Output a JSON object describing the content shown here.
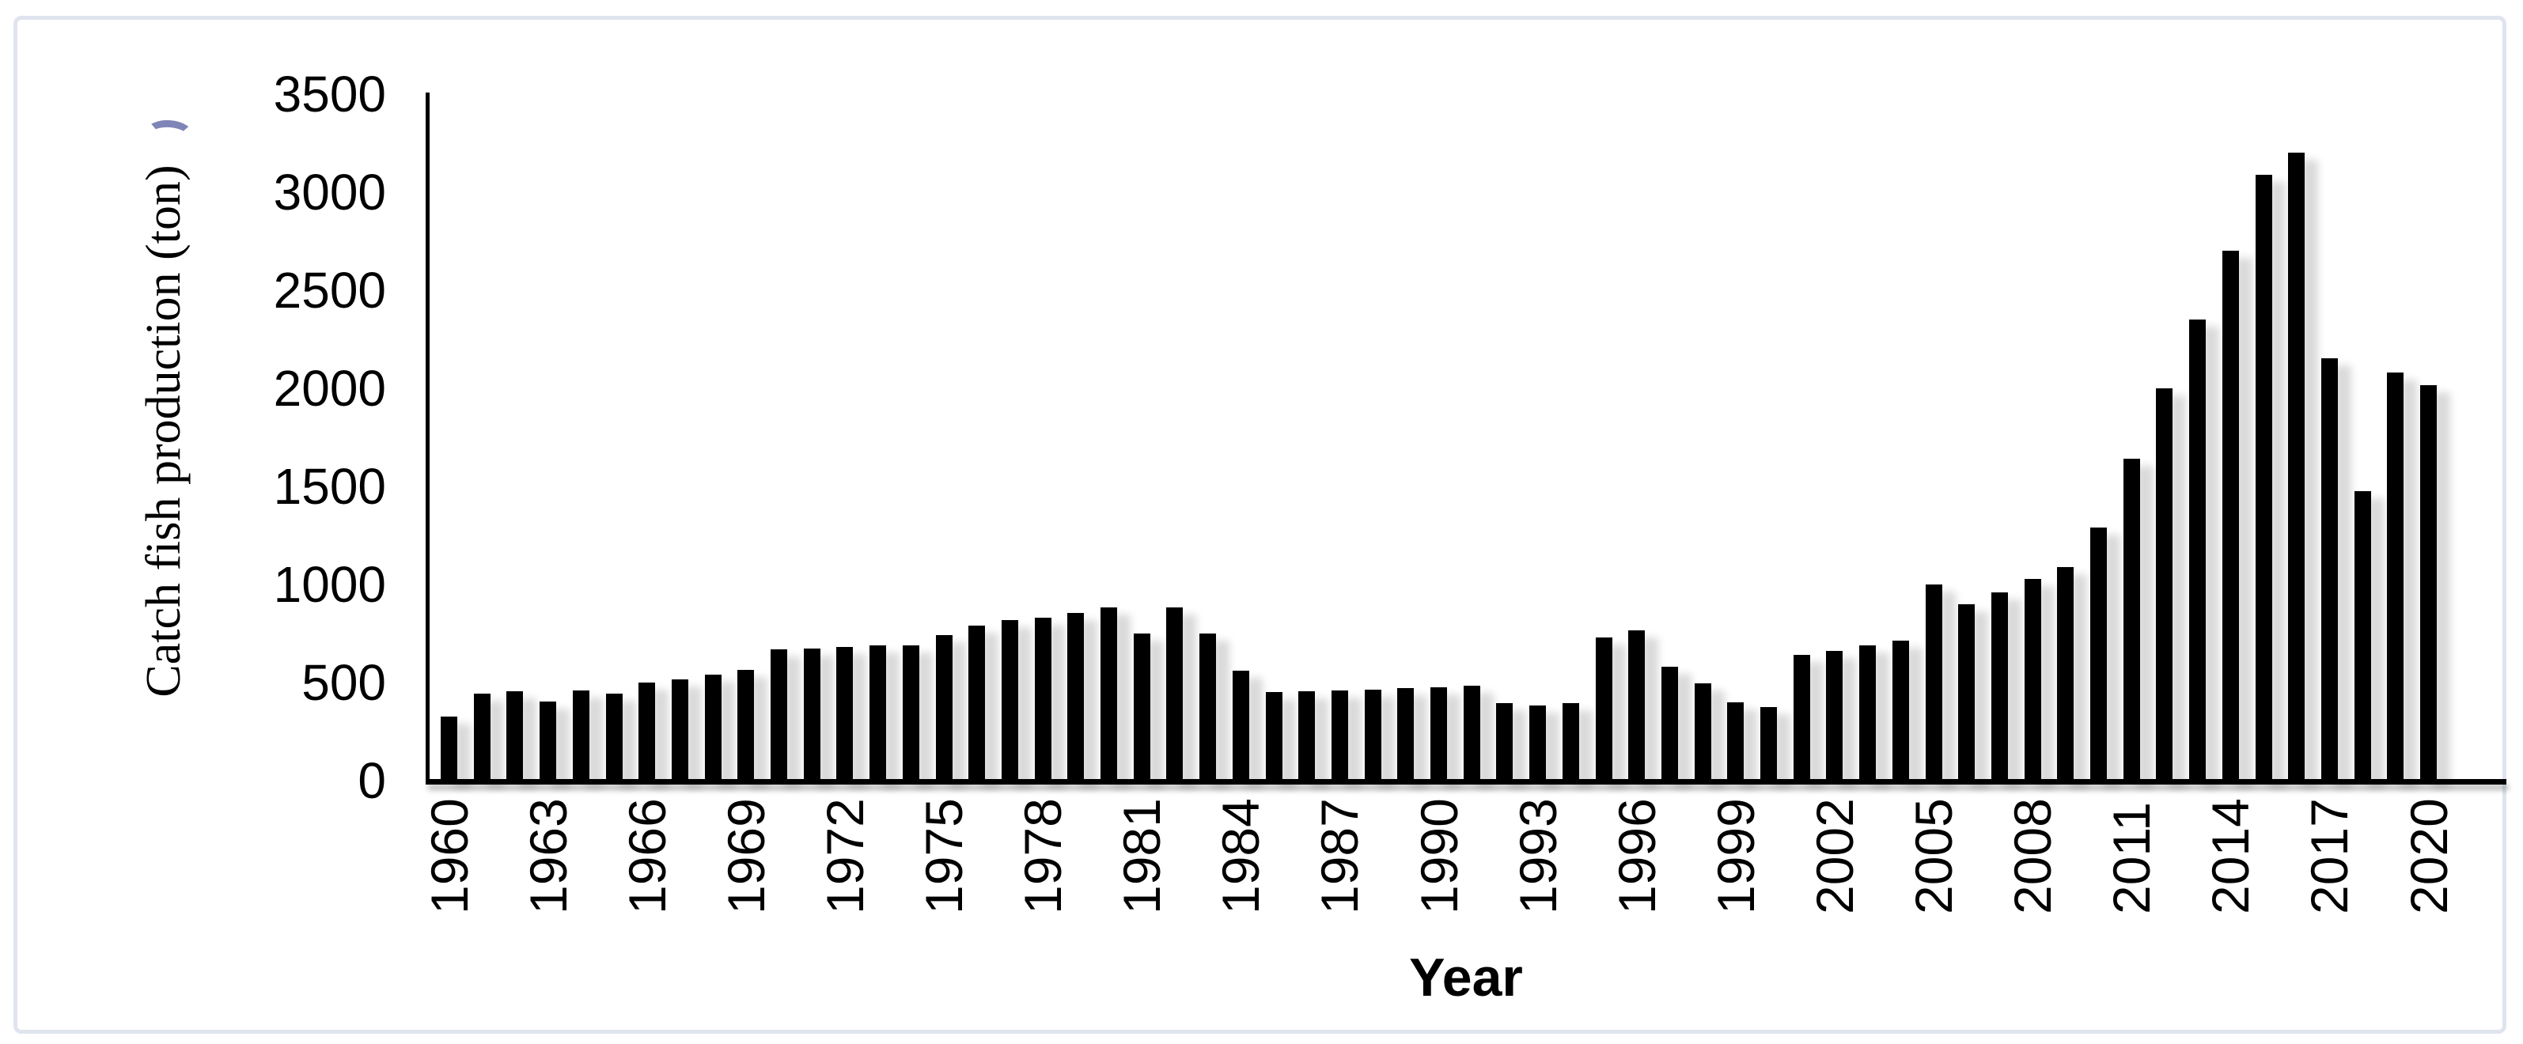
{
  "chart_data": {
    "type": "bar",
    "title": "",
    "xlabel": "Year",
    "ylabel": "Catch fish production (ton)",
    "ylim": [
      0,
      3500
    ],
    "y_ticks": [
      0,
      500,
      1000,
      1500,
      2000,
      2500,
      3000,
      3500
    ],
    "x_tick_labels": [
      "1960",
      "1963",
      "1966",
      "1969",
      "1972",
      "1975",
      "1978",
      "1981",
      "1984",
      "1987",
      "1990",
      "1993",
      "1996",
      "1999",
      "2002",
      "2005",
      "2008",
      "2011",
      "2014",
      "2017",
      "2020"
    ],
    "grid": false,
    "legend_position": "none",
    "bar_color": "#000000",
    "x": [
      1960,
      1961,
      1962,
      1963,
      1964,
      1965,
      1966,
      1967,
      1968,
      1969,
      1970,
      1971,
      1972,
      1973,
      1974,
      1975,
      1976,
      1977,
      1978,
      1979,
      1980,
      1981,
      1982,
      1983,
      1984,
      1985,
      1986,
      1987,
      1988,
      1989,
      1990,
      1991,
      1992,
      1993,
      1994,
      1995,
      1996,
      1997,
      1998,
      1999,
      2000,
      2001,
      2002,
      2003,
      2004,
      2005,
      2006,
      2007,
      2008,
      2009,
      2010,
      2011,
      2012,
      2013,
      2014,
      2015,
      2016,
      2017,
      2018,
      2019,
      2020
    ],
    "values": [
      325,
      445,
      455,
      405,
      460,
      445,
      500,
      515,
      540,
      565,
      670,
      675,
      680,
      690,
      690,
      740,
      790,
      820,
      830,
      855,
      885,
      750,
      885,
      750,
      560,
      450,
      455,
      460,
      465,
      470,
      475,
      485,
      395,
      385,
      395,
      730,
      765,
      580,
      495,
      400,
      375,
      640,
      660,
      690,
      715,
      1000,
      900,
      960,
      1030,
      1090,
      1290,
      1640,
      2000,
      2350,
      2700,
      3090,
      3200,
      2155,
      1475,
      2080,
      2015
    ]
  },
  "frame": {
    "background": "#ffffff",
    "border_color": "#dfe4ee",
    "accent_arc_color": "#8085b8"
  }
}
